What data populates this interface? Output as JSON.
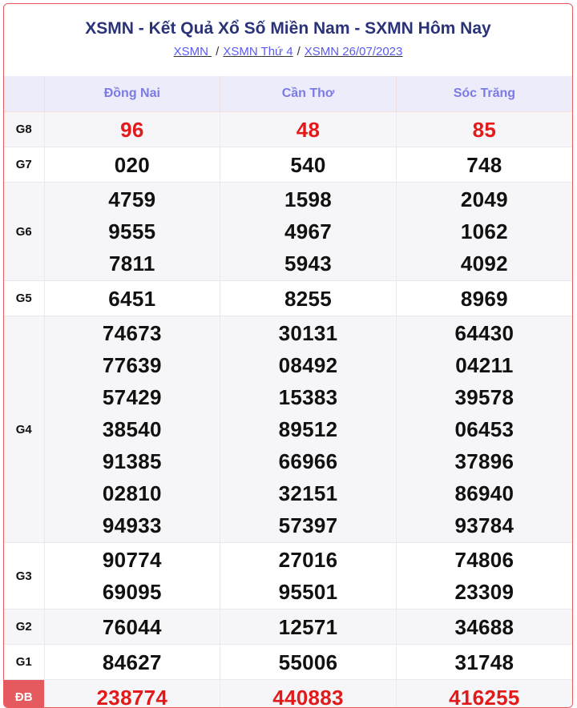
{
  "title": "XSMN - Kết Quả Xổ Số Miền Nam - SXMN Hôm Nay",
  "breadcrumb": [
    "XSMN ",
    "XSMN Thứ 4",
    "XSMN 26/07/2023"
  ],
  "breadcrumb_separator": "/",
  "colors": {
    "accent": "#2a3378",
    "prize_red": "#e21a1a",
    "header_bg": "#ececfb",
    "special_label_bg": "#e45a5e"
  },
  "provinces": [
    "Đồng Nai",
    "Cần Thơ",
    "Sóc Trăng"
  ],
  "prizes": [
    {
      "label": "G8",
      "red": true,
      "values": [
        [
          "96"
        ],
        [
          "48"
        ],
        [
          "85"
        ]
      ]
    },
    {
      "label": "G7",
      "red": false,
      "values": [
        [
          "020"
        ],
        [
          "540"
        ],
        [
          "748"
        ]
      ]
    },
    {
      "label": "G6",
      "red": false,
      "values": [
        [
          "4759",
          "9555",
          "7811"
        ],
        [
          "1598",
          "4967",
          "5943"
        ],
        [
          "2049",
          "1062",
          "4092"
        ]
      ]
    },
    {
      "label": "G5",
      "red": false,
      "values": [
        [
          "6451"
        ],
        [
          "8255"
        ],
        [
          "8969"
        ]
      ]
    },
    {
      "label": "G4",
      "red": false,
      "values": [
        [
          "74673",
          "77639",
          "57429",
          "38540",
          "91385",
          "02810",
          "94933"
        ],
        [
          "30131",
          "08492",
          "15383",
          "89512",
          "66966",
          "32151",
          "57397"
        ],
        [
          "64430",
          "04211",
          "39578",
          "06453",
          "37896",
          "86940",
          "93784"
        ]
      ]
    },
    {
      "label": "G3",
      "red": false,
      "values": [
        [
          "90774",
          "69095"
        ],
        [
          "27016",
          "95501"
        ],
        [
          "74806",
          "23309"
        ]
      ]
    },
    {
      "label": "G2",
      "red": false,
      "values": [
        [
          "76044"
        ],
        [
          "12571"
        ],
        [
          "34688"
        ]
      ]
    },
    {
      "label": "G1",
      "red": false,
      "values": [
        [
          "84627"
        ],
        [
          "55006"
        ],
        [
          "31748"
        ]
      ]
    },
    {
      "label": "ĐB",
      "red": true,
      "values": [
        [
          "238774"
        ],
        [
          "440883"
        ],
        [
          "416255"
        ]
      ]
    }
  ]
}
